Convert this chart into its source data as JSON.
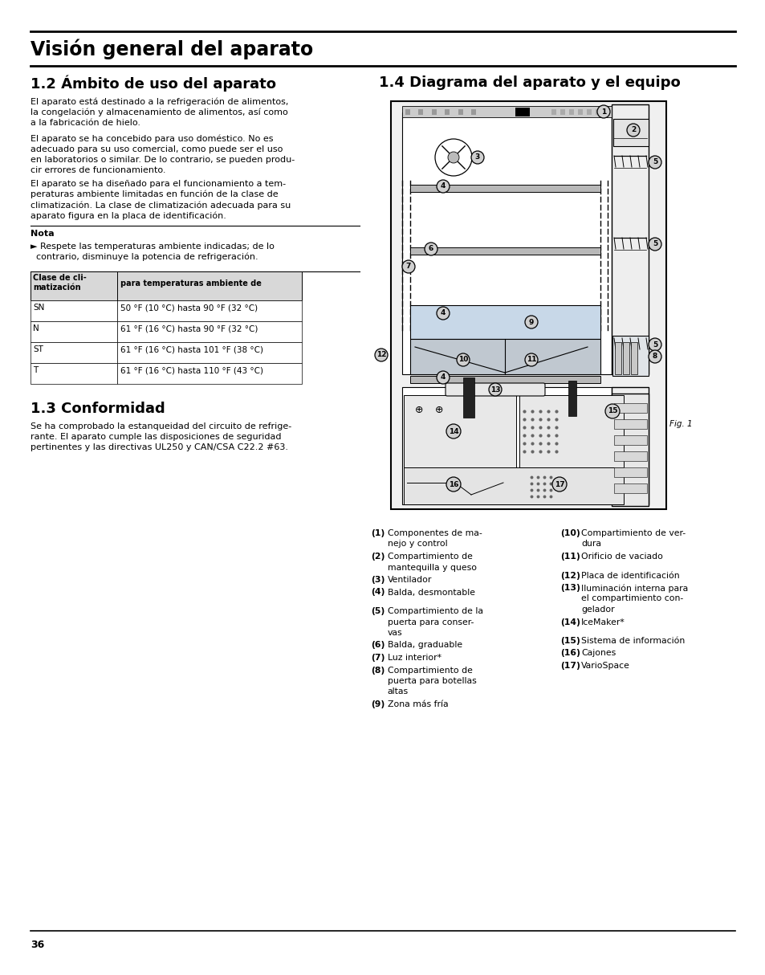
{
  "bg_color": "#ffffff",
  "title": "Visión general del aparato",
  "section1_title": "1.2 Ámbito de uso del aparato",
  "section2_title": "1.3 Conformidad",
  "section3_title": "1.4 Diagrama del aparato y el equipo",
  "para1": "El aparato está destinado a la refrigeración de alimentos,\nla congelación y almacenamiento de alimentos, así como\na la fabricación de hielo.",
  "para2": "El aparato se ha concebido para uso doméstico. No es\nadecuado para su uso comercial, como puede ser el uso\nen laboratorios o similar. De lo contrario, se pueden produ-\ncir errores de funcionamiento.",
  "para3": "El aparato se ha diseñado para el funcionamiento a tem-\nperaturas ambiente limitadas en función de la clase de\nclimatización. La clase de climatización adecuada para su\naparato figura en la placa de identificación.",
  "nota_title": "Nota",
  "nota_text": "► Respete las temperaturas ambiente indicadas; de lo\n  contrario, disminuye la potencia de refrigeración.",
  "table_header1": "Clase de cli-\nmatización",
  "table_header2": "para temperaturas ambiente de",
  "table_rows": [
    [
      "SN",
      "50 °F (10 °C) hasta 90 °F (32 °C)"
    ],
    [
      "N",
      "61 °F (16 °C) hasta 90 °F (32 °C)"
    ],
    [
      "ST",
      "61 °F (16 °C) hasta 101 °F (38 °C)"
    ],
    [
      "T",
      "61 °F (16 °C) hasta 110 °F (43 °C)"
    ]
  ],
  "conform_text": "Se ha comprobado la estanqueidad del circuito de refrige-\nrante. El aparato cumple las disposiciones de seguridad\npertinentes y las directivas UL250 y CAN/CSA C22.2 #63.",
  "fig_caption": "Fig. 1",
  "legend_items_left": [
    {
      "num": "1",
      "text": "Componentes de ma-\nnejo y control"
    },
    {
      "num": "2",
      "text": "Compartimiento de\nmantequilla y queso"
    },
    {
      "num": "3",
      "text": "Ventilador"
    },
    {
      "num": "4",
      "text": "Balda, desmontable"
    },
    {
      "num": "",
      "text": ""
    },
    {
      "num": "5",
      "text": "Compartimiento de la\npuerta para conser-\nvas"
    },
    {
      "num": "6",
      "text": "Balda, graduable"
    },
    {
      "num": "7",
      "text": "Luz interior*"
    },
    {
      "num": "8",
      "text": "Compartimiento de\npuerta para botellas\naltas"
    },
    {
      "num": "9",
      "text": "Zona más fría"
    }
  ],
  "legend_items_right": [
    {
      "num": "10",
      "text": "Compartimiento de ver-\ndura"
    },
    {
      "num": "11",
      "text": "Orificio de vaciado"
    },
    {
      "num": "",
      "text": ""
    },
    {
      "num": "12",
      "text": "Placa de identificación"
    },
    {
      "num": "13",
      "text": "Iluminación interna para\nel compartimiento con-\ngelador"
    },
    {
      "num": "14",
      "text": "IceMaker*"
    },
    {
      "num": "",
      "text": ""
    },
    {
      "num": "15",
      "text": "Sistema de información"
    },
    {
      "num": "16",
      "text": "Cajones"
    },
    {
      "num": "17",
      "text": "VarioSpace"
    }
  ],
  "page_number": "36"
}
